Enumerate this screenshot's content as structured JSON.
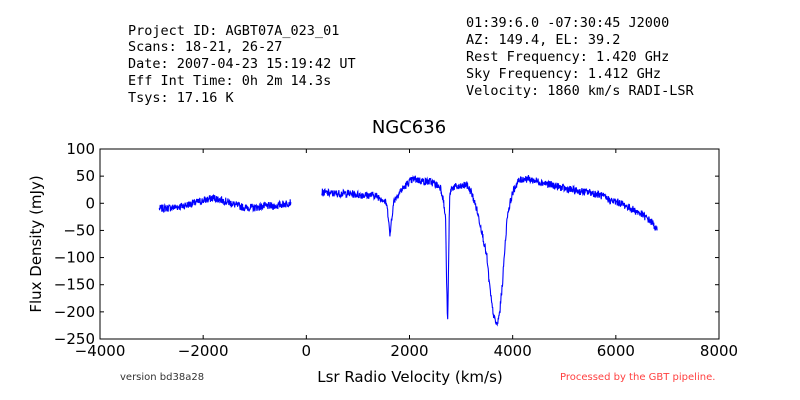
{
  "header_left": [
    "Project ID: AGBT07A_023_01",
    "Scans: 18-21, 26-27",
    "Date: 2007-04-23 15:19:42 UT",
    "Eff Int Time: 0h 2m 14.3s",
    "Tsys: 17.16 K"
  ],
  "header_right": [
    "01:39:6.0 -07:30:45 J2000",
    "AZ: 149.4, EL: 39.2",
    "Rest Frequency:   1.420 GHz",
    "Sky Frequency:    1.412 GHz",
    "Velocity: 1860 km/s RADI-LSR"
  ],
  "footer": {
    "version": "version bd38a28",
    "processed": "Processed by the GBT pipeline."
  },
  "colors": {
    "series": "#0000ff",
    "processed_text": "#ff4040"
  },
  "chart_data": {
    "type": "line",
    "title": "NGC636",
    "xlabel": "Lsr Radio Velocity (km/s)",
    "ylabel": "Flux Density (mJy)",
    "xlim": [
      -4000,
      8000
    ],
    "ylim": [
      -250,
      100
    ],
    "xticks": [
      -4000,
      -2000,
      0,
      2000,
      4000,
      6000,
      8000
    ],
    "yticks": [
      100,
      50,
      0,
      -50,
      -100,
      -150,
      -200,
      -250
    ],
    "xtick_labels": [
      "−4000",
      "−2000",
      "0",
      "2000",
      "4000",
      "6000",
      "8000"
    ],
    "ytick_labels": [
      "100",
      "50",
      "0",
      "−50",
      "−100",
      "−150",
      "−200",
      "−250"
    ],
    "grid": false,
    "series": [
      {
        "segments": [
          {
            "x": [
              -2850,
              -2600,
              -2400,
              -2200,
              -2000,
              -1800,
              -1600,
              -1400,
              -1200,
              -1000,
              -800,
              -600,
              -300
            ],
            "y": [
              -10,
              -8,
              -5,
              0,
              5,
              10,
              5,
              -2,
              -8,
              -8,
              -5,
              -5,
              2
            ]
          },
          {
            "x": [
              300,
              500,
              800,
              1100,
              1300,
              1450,
              1550,
              1600,
              1620,
              1650,
              1700,
              1800,
              1900,
              2000,
              2100,
              2200,
              2300,
              2400,
              2500,
              2600,
              2650,
              2700,
              2720,
              2740,
              2760,
              2770,
              2780,
              2800,
              2850,
              2900,
              3000,
              3100,
              3200,
              3300,
              3400,
              3500,
              3550,
              3600,
              3650,
              3700,
              3750,
              3800,
              3850,
              3900,
              4000,
              4100,
              4200,
              4300,
              4500,
              4700,
              4900,
              5100,
              5300,
              5500,
              5700,
              5900,
              6100,
              6300,
              6500,
              6700,
              6800
            ],
            "y": [
              20,
              18,
              18,
              15,
              15,
              10,
              0,
              -30,
              -65,
              -30,
              5,
              20,
              30,
              40,
              45,
              42,
              40,
              40,
              35,
              30,
              10,
              -30,
              -150,
              -220,
              -100,
              -30,
              10,
              25,
              30,
              30,
              30,
              35,
              20,
              -10,
              -50,
              -100,
              -150,
              -190,
              -215,
              -225,
              -200,
              -150,
              -80,
              -20,
              20,
              40,
              45,
              45,
              40,
              35,
              30,
              25,
              22,
              20,
              15,
              5,
              0,
              -10,
              -20,
              -35,
              -50
            ]
          }
        ]
      }
    ]
  }
}
